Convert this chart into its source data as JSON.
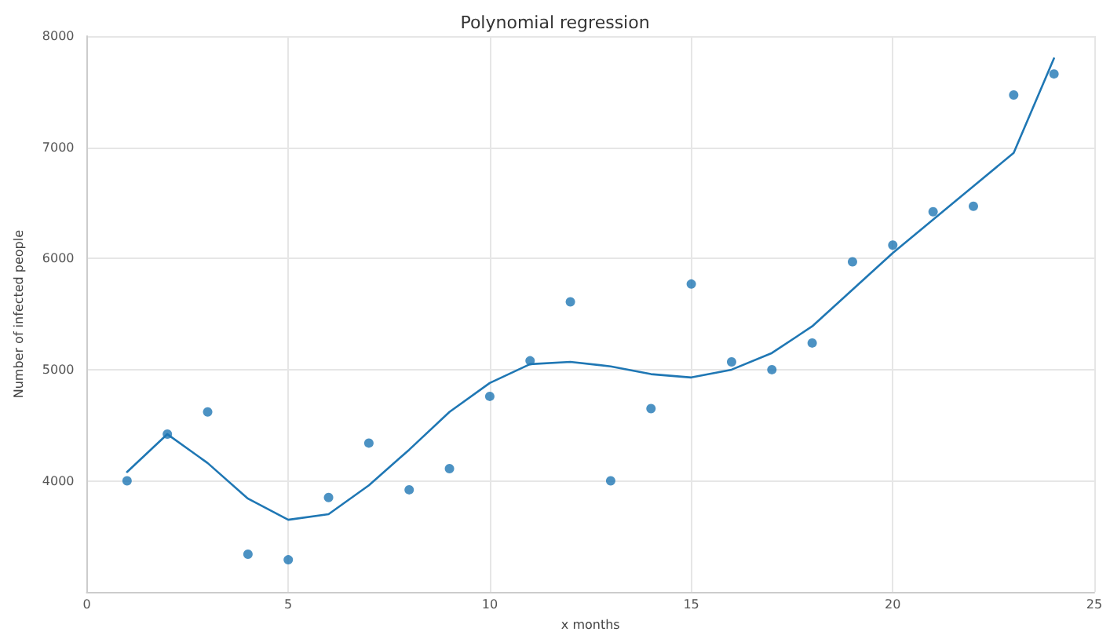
{
  "chart_data": {
    "type": "scatter",
    "title": "Polynomial regression",
    "xlabel": "x months",
    "ylabel": "Number of infected people",
    "xlim": [
      0,
      25
    ],
    "xticks": [
      0,
      5,
      10,
      15,
      20,
      25
    ],
    "ylim": [
      3000,
      8000
    ],
    "yticks": [
      4000,
      5000,
      6000,
      7000,
      8000
    ],
    "grid": true,
    "series": [
      {
        "marker": "circle",
        "color": "#1f77b4",
        "x": [
          1,
          2,
          3,
          4,
          5,
          6,
          7,
          8,
          9,
          10,
          11,
          12,
          13,
          14,
          15,
          16,
          17,
          18,
          19,
          20,
          21,
          22,
          23,
          24
        ],
        "values": [
          4000,
          4420,
          4620,
          3340,
          3290,
          3850,
          4340,
          3920,
          4110,
          4760,
          5080,
          5610,
          4000,
          4650,
          5770,
          5070,
          5000,
          5240,
          5970,
          6120,
          6420,
          6470,
          7470,
          7660
        ]
      },
      {
        "type": "line",
        "marker": "none",
        "color": "#1f77b4",
        "x": [
          1,
          2,
          3,
          4,
          5,
          6,
          7,
          8,
          9,
          10,
          11,
          12,
          13,
          14,
          15,
          16,
          17,
          18,
          19,
          20,
          21,
          22,
          23,
          24
        ],
        "values": [
          4080,
          4420,
          4160,
          3840,
          3650,
          3700,
          3960,
          4280,
          4620,
          4880,
          5050,
          5070,
          5030,
          4960,
          4930,
          5000,
          5150,
          5390,
          5720,
          6050,
          6350,
          6650,
          6950,
          7800
        ]
      }
    ]
  }
}
